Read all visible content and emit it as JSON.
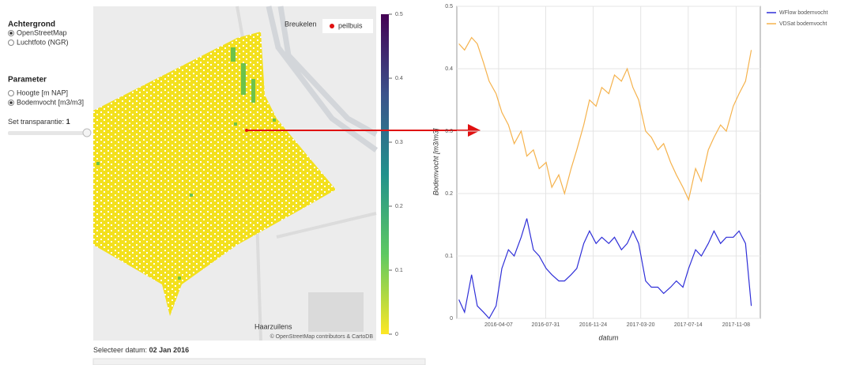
{
  "sidebar": {
    "background_heading": "Achtergrond",
    "background_options": [
      "OpenStreetMap",
      "Luchtfoto (NGR)"
    ],
    "parameter_heading": "Parameter",
    "parameter_options": [
      "Hoogte [m NAP]",
      "Bodemvocht [m3/m3]"
    ],
    "transparency_label": "Set transparantie:",
    "transparency_value": "1"
  },
  "map": {
    "place_labels": [
      "Breukelen",
      "Haarzuilens"
    ],
    "legend_label": "peilbuis",
    "attribution": "© OpenStreetMap contributors & CartoDB",
    "colorbar_lim": [
      0,
      0.5
    ],
    "colorbar_ticks": [
      0,
      0.1,
      0.2,
      0.3,
      0.4,
      0.5
    ]
  },
  "date_selector": {
    "label": "Selecteer datum:",
    "value": "02 Jan 2016"
  },
  "chart_data": {
    "type": "line",
    "x_label": "datum",
    "y_label": "Bodemvocht [m3/m3]",
    "x": [
      "2016-01-01",
      "2016-01-15",
      "2016-02-01",
      "2016-02-15",
      "2016-03-01",
      "2016-03-15",
      "2016-04-01",
      "2016-04-15",
      "2016-05-01",
      "2016-05-15",
      "2016-06-01",
      "2016-06-15",
      "2016-07-01",
      "2016-07-15",
      "2016-08-01",
      "2016-08-15",
      "2016-09-01",
      "2016-09-15",
      "2016-10-01",
      "2016-10-15",
      "2016-11-01",
      "2016-11-15",
      "2016-12-01",
      "2016-12-15",
      "2017-01-01",
      "2017-01-15",
      "2017-02-01",
      "2017-02-15",
      "2017-03-01",
      "2017-03-15",
      "2017-04-01",
      "2017-04-15",
      "2017-05-01",
      "2017-05-15",
      "2017-06-01",
      "2017-06-15",
      "2017-07-01",
      "2017-07-15",
      "2017-08-01",
      "2017-08-15",
      "2017-09-01",
      "2017-09-15",
      "2017-10-01",
      "2017-10-15",
      "2017-11-01",
      "2017-11-15",
      "2017-12-01",
      "2017-12-15"
    ],
    "xlim": [
      "2015-12-27",
      "2018-01-06"
    ],
    "xticks": [
      "2016-04-07",
      "2016-07-31",
      "2016-11-24",
      "2017-03-20",
      "2017-07-14",
      "2017-11-08"
    ],
    "ylim": [
      0,
      0.5
    ],
    "yticks": [
      0,
      0.1,
      0.2,
      0.3,
      0.4,
      0.5
    ],
    "grid": true,
    "series": [
      {
        "name": "WFlow bodemvocht",
        "color": "#2f2fd8",
        "values": [
          0.03,
          0.01,
          0.07,
          0.02,
          0.01,
          0.0,
          0.02,
          0.08,
          0.11,
          0.1,
          0.13,
          0.16,
          0.11,
          0.1,
          0.08,
          0.07,
          0.06,
          0.06,
          0.07,
          0.08,
          0.12,
          0.14,
          0.12,
          0.13,
          0.12,
          0.13,
          0.11,
          0.12,
          0.14,
          0.12,
          0.06,
          0.05,
          0.05,
          0.04,
          0.05,
          0.06,
          0.05,
          0.08,
          0.11,
          0.1,
          0.12,
          0.14,
          0.12,
          0.13,
          0.13,
          0.14,
          0.12,
          0.02
        ]
      },
      {
        "name": "VDSat bodemvocht",
        "color": "#f5b24c",
        "values": [
          0.44,
          0.43,
          0.45,
          0.44,
          0.41,
          0.38,
          0.36,
          0.33,
          0.31,
          0.28,
          0.3,
          0.26,
          0.27,
          0.24,
          0.25,
          0.21,
          0.23,
          0.2,
          0.24,
          0.27,
          0.31,
          0.35,
          0.34,
          0.37,
          0.36,
          0.39,
          0.38,
          0.4,
          0.37,
          0.35,
          0.3,
          0.29,
          0.27,
          0.28,
          0.25,
          0.23,
          0.21,
          0.19,
          0.24,
          0.22,
          0.27,
          0.29,
          0.31,
          0.3,
          0.34,
          0.36,
          0.38,
          0.43
        ]
      }
    ]
  }
}
